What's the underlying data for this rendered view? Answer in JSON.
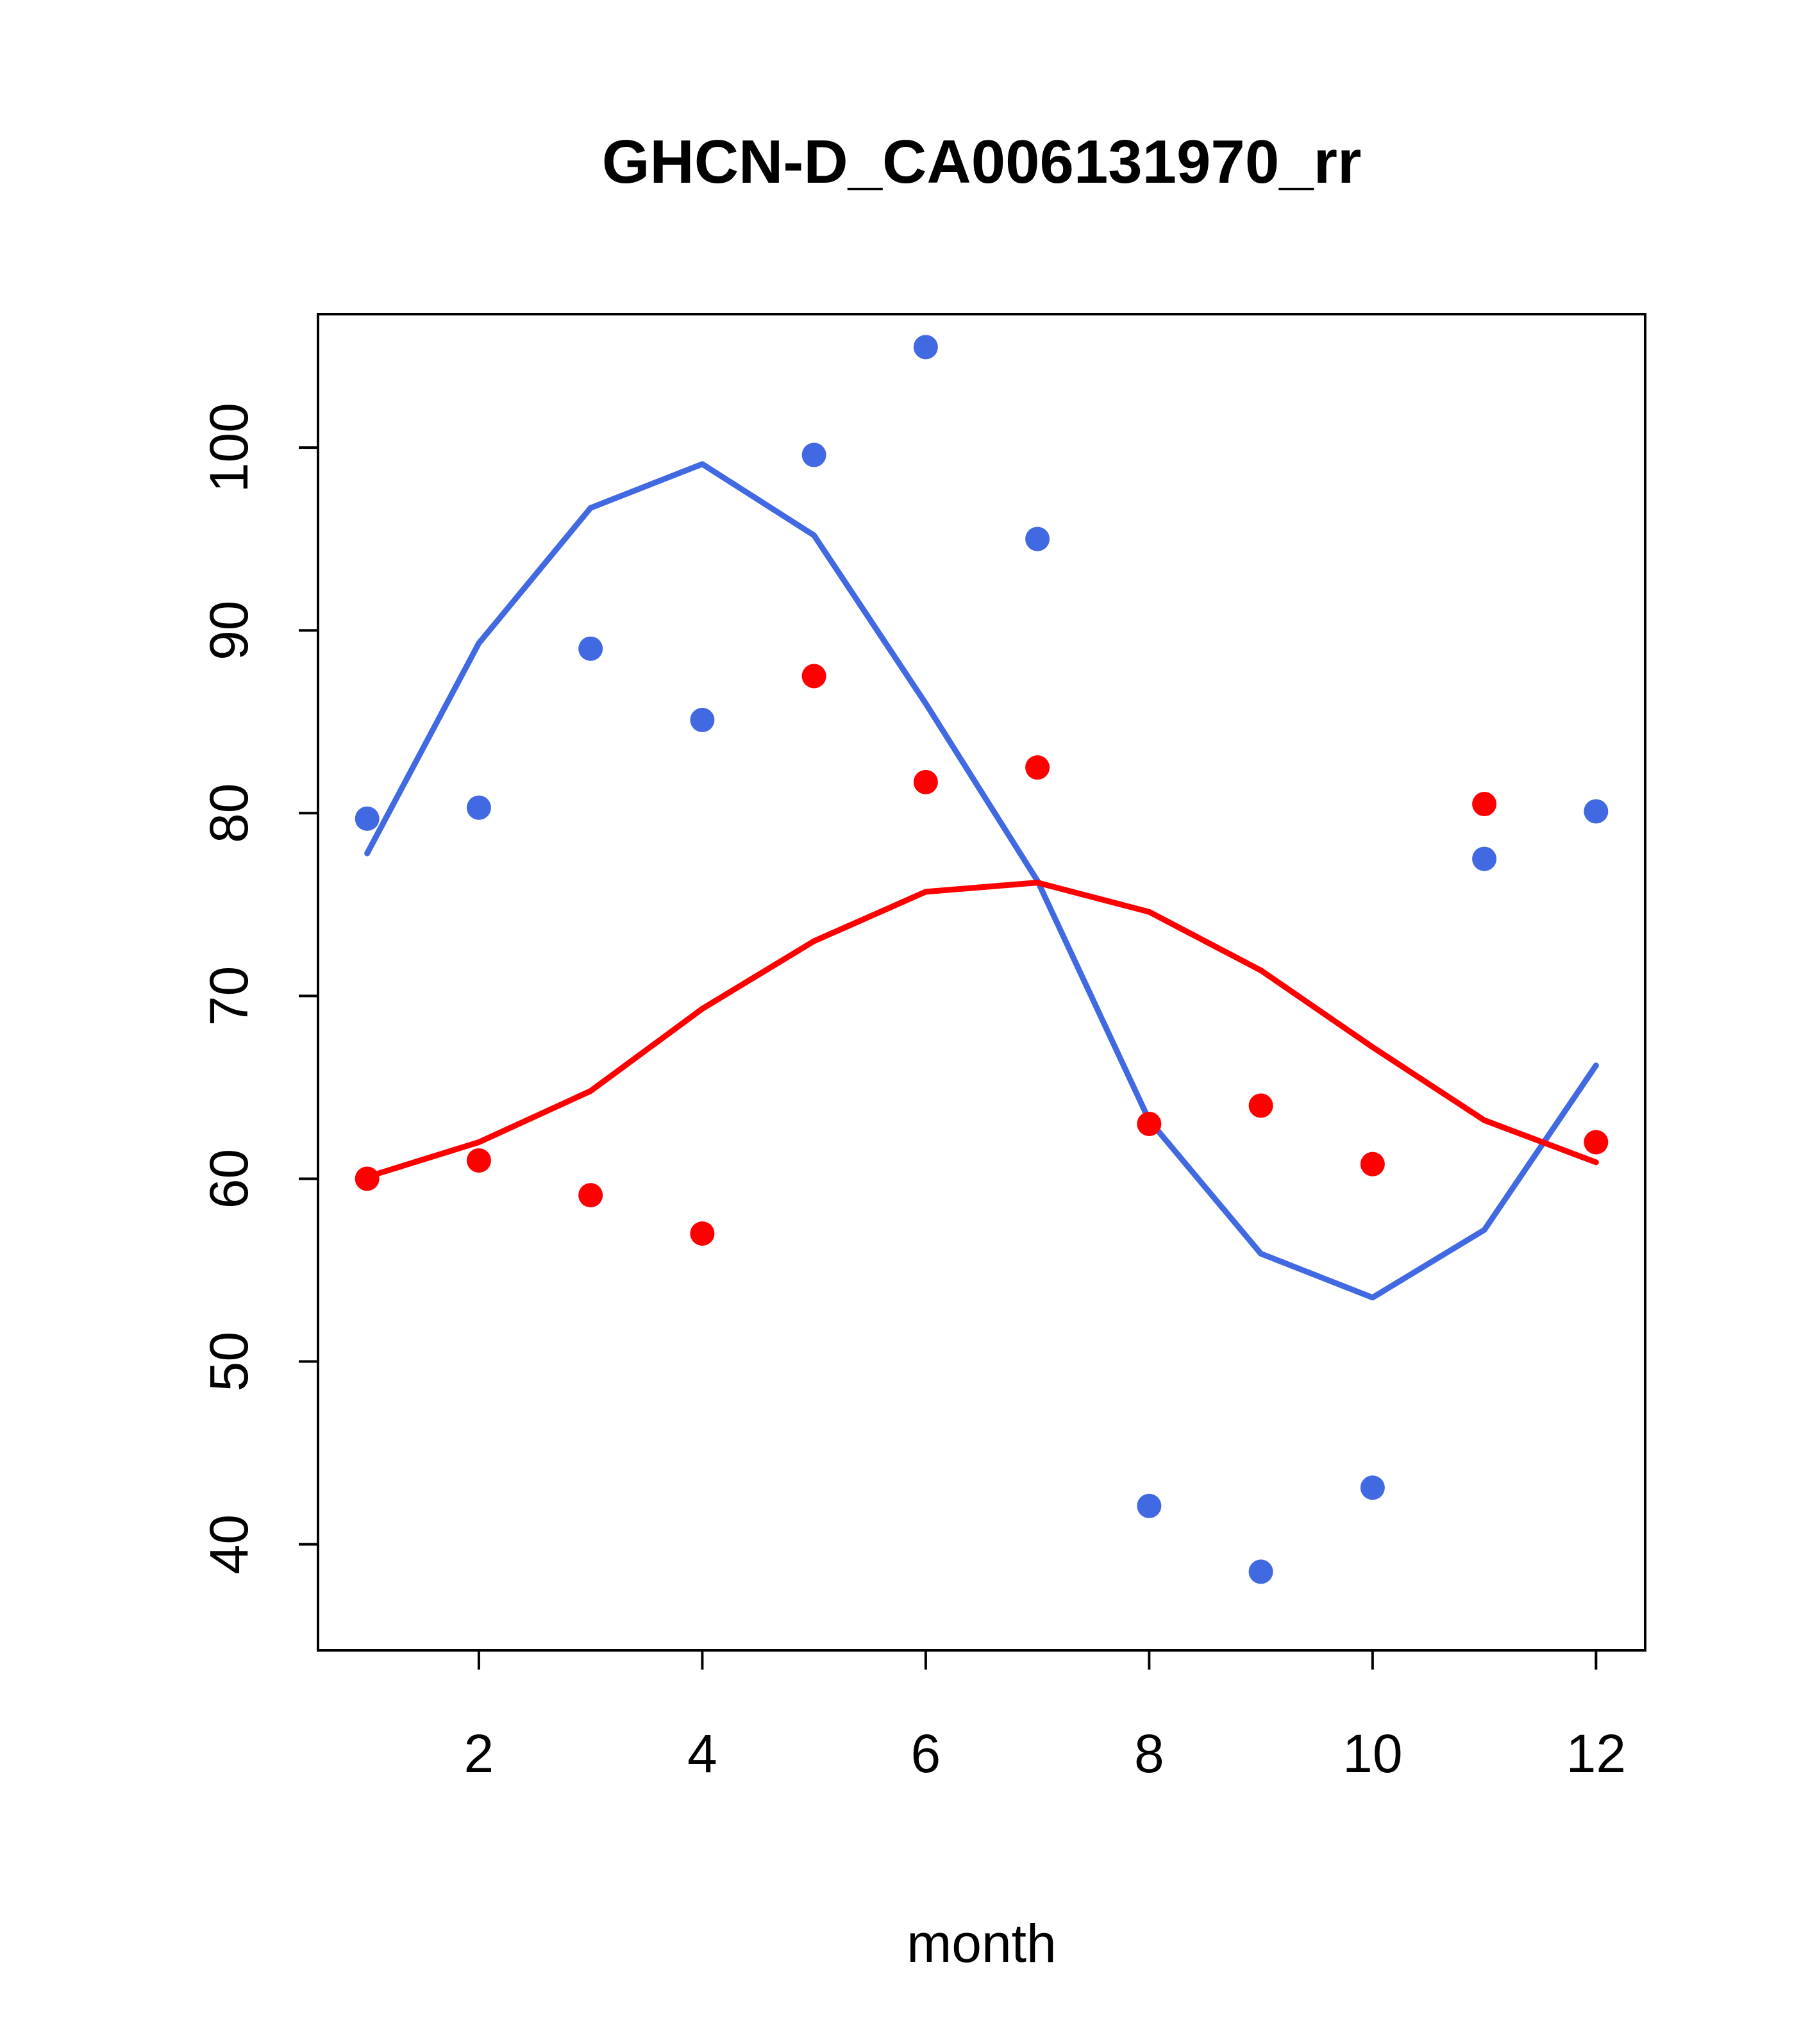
{
  "chart_data": {
    "type": "scatter",
    "title": "GHCN-D_CA006131970_rr",
    "xlabel": "month",
    "ylabel": "",
    "xlim": [
      0.56,
      12.44
    ],
    "ylim": [
      34.2,
      107.3
    ],
    "x_ticks": [
      2,
      4,
      6,
      8,
      10,
      12
    ],
    "y_ticks": [
      40,
      50,
      60,
      70,
      80,
      90,
      100
    ],
    "x": [
      1,
      2,
      3,
      4,
      5,
      6,
      7,
      8,
      9,
      10,
      11,
      12
    ],
    "grid": false,
    "legend_position": "none",
    "colors": {
      "blue": "#4169E1",
      "red": "#FF0000",
      "axis": "#000000",
      "background": "#FFFFFF"
    },
    "series": [
      {
        "name": "blue-smoothed-line",
        "type": "line",
        "color": "#4169E1",
        "values": [
          77.8,
          89.3,
          96.7,
          99.1,
          95.2,
          86.0,
          76.3,
          63.2,
          55.9,
          53.5,
          57.2,
          66.2
        ]
      },
      {
        "name": "red-smoothed-line",
        "type": "line",
        "color": "#FF0000",
        "values": [
          60.1,
          62.0,
          64.8,
          69.3,
          73.0,
          75.7,
          76.2,
          74.6,
          71.4,
          67.2,
          63.2,
          60.9
        ]
      },
      {
        "name": "blue-points",
        "type": "points",
        "color": "#4169E1",
        "values": [
          79.7,
          80.3,
          89.0,
          85.1,
          99.6,
          105.5,
          95.0,
          42.1,
          38.5,
          43.1,
          77.5,
          80.1
        ]
      },
      {
        "name": "red-points",
        "type": "points",
        "color": "#FF0000",
        "values": [
          60.0,
          61.0,
          59.1,
          57.0,
          87.5,
          81.7,
          82.5,
          63.0,
          64.0,
          60.8,
          80.5,
          62.0
        ]
      }
    ]
  },
  "plot_style": {
    "point_radius": 19,
    "line_width": 9,
    "box_stroke": 4,
    "tick_length": 30
  }
}
